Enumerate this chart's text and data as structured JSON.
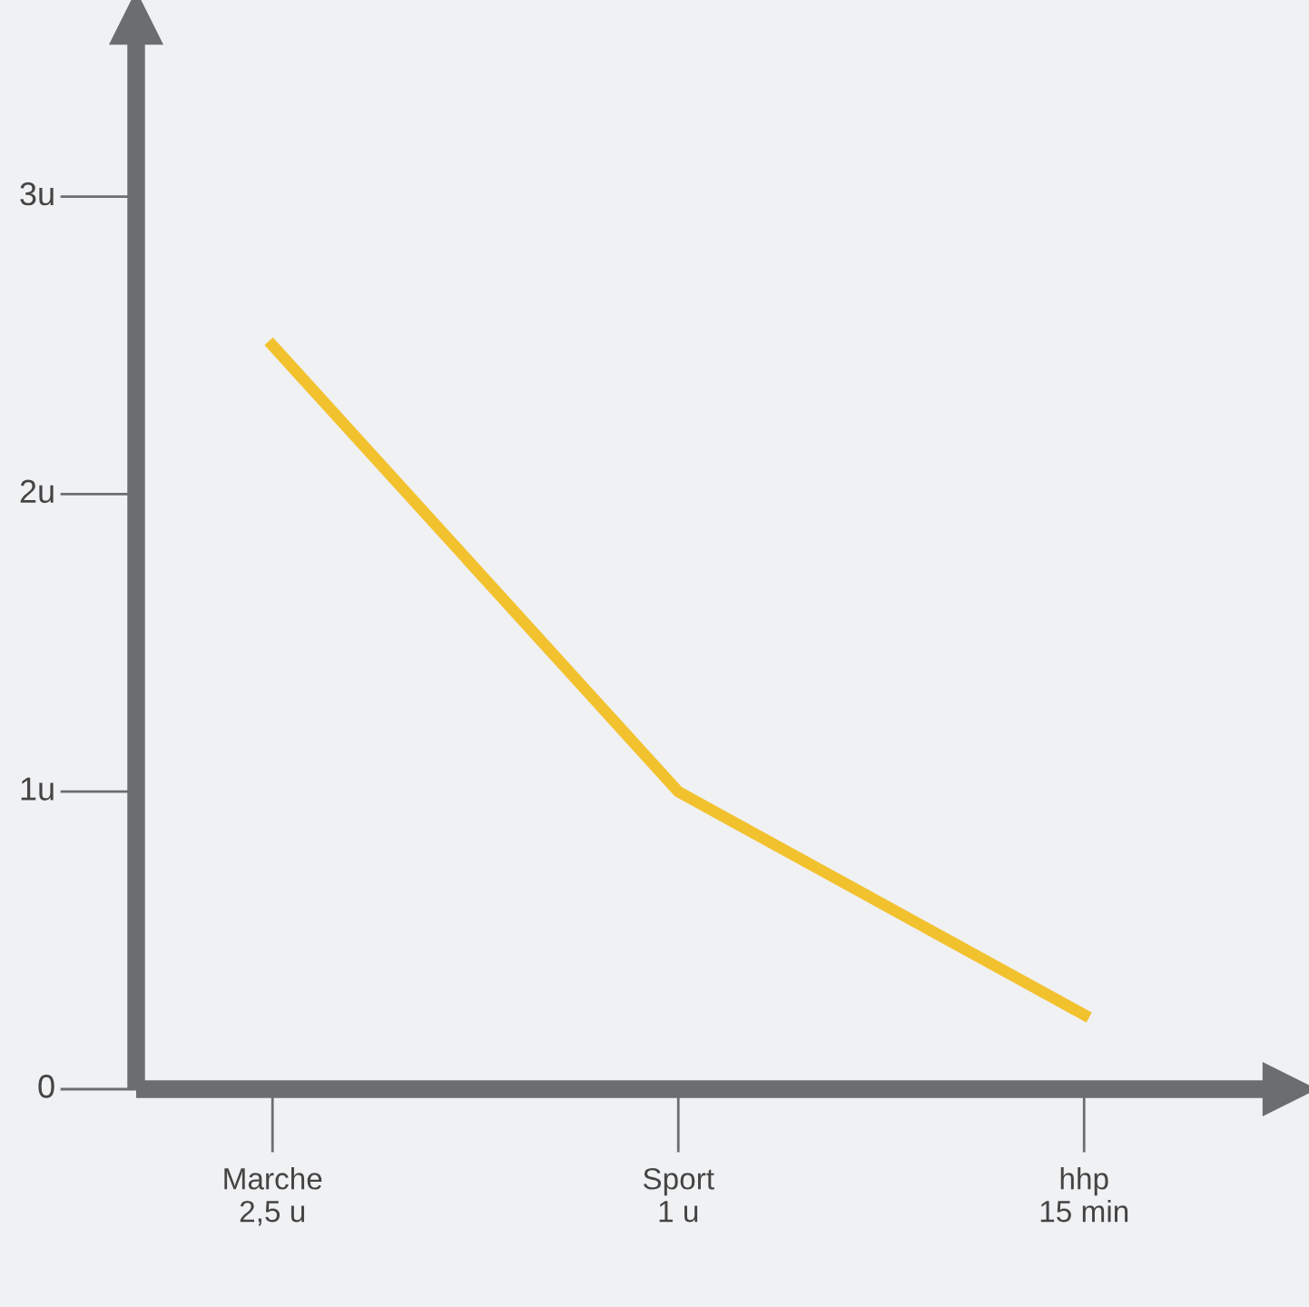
{
  "chart_data": {
    "type": "line",
    "categories": [
      "Marche\n2,5 u",
      "Sport\n1 u",
      "hhp\n15 min"
    ],
    "series": [
      {
        "color": "#f2c12e",
        "values": [
          2.5,
          1,
          0.25
        ]
      }
    ],
    "ylim": [
      0,
      3.6
    ],
    "yticks": [
      0,
      {
        "value": 1,
        "label": "1u"
      },
      {
        "value": 2,
        "label": "2u"
      },
      {
        "value": 3,
        "label": "3u"
      }
    ],
    "marker": "none",
    "line_style": "solid",
    "grid": false,
    "legend": false
  }
}
